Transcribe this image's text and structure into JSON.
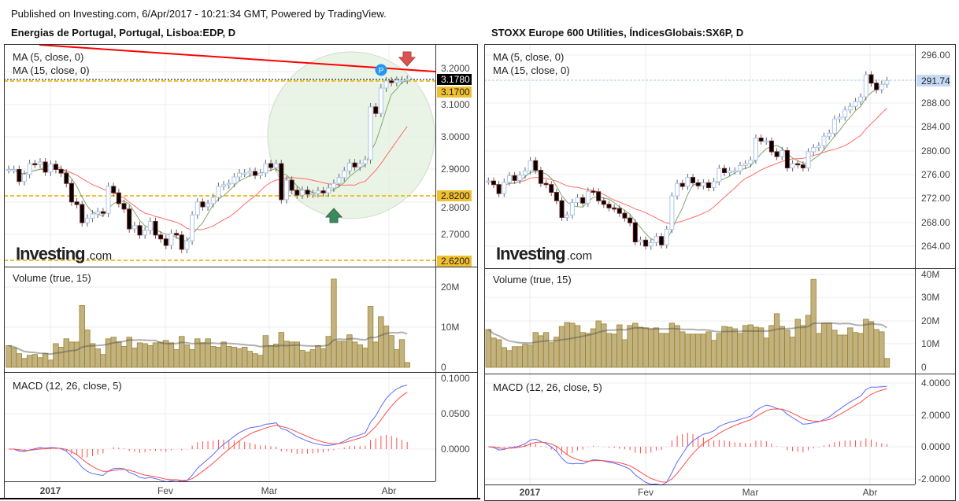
{
  "header": {
    "published": "Published on Investing.com, 6/Apr/2017 - 10:21:34 GMT, Powered by TradingView."
  },
  "watermark": {
    "brand": "Investing",
    "suffix": ".com"
  },
  "left": {
    "title": "Energias de Portugal, Portugal, Lisboa:EDP, D",
    "ma5_label": "MA (5, close, 0)",
    "ma15_label": "MA (15, close, 0)",
    "volume_label": "Volume (true, 15)",
    "macd_label": "MACD (12, 26, close, 5)",
    "price_ticks": [
      "3.2000",
      "3.1000",
      "3.0000",
      "2.9000",
      "2.8000",
      "2.7000"
    ],
    "price_badges": {
      "last": "3.1780",
      "level1": "3.1700",
      "level2": "2.8200",
      "level3": "2.6200"
    },
    "volume_ticks": [
      "20M",
      "10M",
      "0"
    ],
    "macd_ticks": [
      "0.1000",
      "0.0500",
      "0.0000"
    ],
    "date_labels": [
      "2017",
      "Fev",
      "Mar",
      "Abr"
    ],
    "colors": {
      "level_line": "#f0c030",
      "trend_line": "#ff0000",
      "highlight_circle": "#e6f2e2",
      "pin": "#2196f3",
      "arrow_down": "#d9534f",
      "arrow_up": "#3c8a5c"
    },
    "pin_label": "P"
  },
  "right": {
    "title": "STOXX Europe 600 Utilities, ÍndicesGlobais:SX6P, D",
    "ma5_label": "MA (5, close, 0)",
    "ma15_label": "MA (15, close, 0)",
    "volume_label": "Volume (true, 15)",
    "macd_label": "MACD (12, 26, close, 5)",
    "price_ticks": [
      "296.00",
      "288.00",
      "284.00",
      "280.00",
      "276.00",
      "272.00",
      "268.00",
      "264.00"
    ],
    "price_badges": {
      "last": "291.74"
    },
    "volume_ticks": [
      "40M",
      "30M",
      "20M",
      "10M",
      "0"
    ],
    "macd_ticks": [
      "4.0000",
      "2.0000",
      "0.0000",
      "-2.0000"
    ],
    "date_labels": [
      "2017",
      "Fev",
      "Mar",
      "Abr"
    ]
  },
  "chart_data": [
    {
      "type": "candlestick",
      "title": "Energias de Portugal, Portugal, Lisboa:EDP, D",
      "close": [
        2.9,
        2.9,
        2.863,
        2.885,
        2.918,
        2.916,
        2.923,
        2.892,
        2.916,
        2.9,
        2.889,
        2.857,
        2.8,
        2.792,
        2.736,
        2.75,
        2.763,
        2.77,
        2.765,
        2.848,
        2.828,
        2.795,
        2.778,
        2.717,
        2.727,
        2.698,
        2.712,
        2.74,
        2.698,
        2.686,
        2.666,
        2.703,
        2.698,
        2.654,
        2.68,
        2.76,
        2.8,
        2.785,
        2.795,
        2.814,
        2.848,
        2.853,
        2.857,
        2.877,
        2.889,
        2.889,
        2.894,
        2.882,
        2.889,
        2.918,
        2.906,
        2.918,
        2.807,
        2.867,
        2.836,
        2.821,
        2.836,
        2.824,
        2.826,
        2.834,
        2.828,
        2.843,
        2.857,
        2.875,
        2.896,
        2.92,
        2.908,
        2.918,
        2.93,
        3.093,
        3.073,
        3.151,
        3.173,
        3.168,
        3.175,
        3.175,
        3.178
      ],
      "volume_millions": [
        5.4,
        4.8,
        3.4,
        2.2,
        3.0,
        3.2,
        2.4,
        3.4,
        1.8,
        5.9,
        5.0,
        7.1,
        6.3,
        6.3,
        15.4,
        9.3,
        5.9,
        4.6,
        3.2,
        7.1,
        7.5,
        6.3,
        5.2,
        7.5,
        4.8,
        6.1,
        5.9,
        5.4,
        6.1,
        6.3,
        6.7,
        6.1,
        4.4,
        7.7,
        5.6,
        4.4,
        7.1,
        6.1,
        7.1,
        5.2,
        5.0,
        6.3,
        5.2,
        5.0,
        4.6,
        5.0,
        4.0,
        3.4,
        3.0,
        7.9,
        5.4,
        5.8,
        8.7,
        6.5,
        6.3,
        6.3,
        4.2,
        3.8,
        4.4,
        5.4,
        4.6,
        7.7,
        22.0,
        6.5,
        6.5,
        8.1,
        6.3,
        5.6,
        4.8,
        15.2,
        6.3,
        12.6,
        10.3,
        7.9,
        4.4,
        6.9,
        1.2
      ],
      "levels": [
        3.17,
        2.82,
        2.62
      ],
      "last": 3.178,
      "price_range": [
        2.62,
        3.22
      ],
      "macd_range": [
        -0.03,
        0.1
      ]
    },
    {
      "type": "candlestick",
      "title": "STOXX Europe 600 Utilities, ÍndicesGlobais:SX6P, D",
      "close": [
        274.9,
        274.3,
        272.8,
        274.7,
        275.8,
        275.0,
        275.9,
        276.6,
        278.3,
        276.7,
        274.5,
        274.3,
        273.0,
        271.6,
        268.8,
        269.2,
        271.3,
        272.1,
        271.2,
        273.2,
        273.1,
        271.6,
        271.0,
        270.4,
        270.3,
        269.5,
        268.7,
        267.9,
        264.7,
        265.0,
        264.0,
        264.6,
        265.6,
        264.2,
        266.8,
        272.4,
        274.5,
        274.0,
        275.5,
        274.6,
        274.1,
        274.6,
        273.8,
        274.8,
        277.0,
        276.3,
        276.6,
        276.6,
        277.5,
        277.8,
        278.4,
        282.1,
        281.6,
        281.6,
        279.8,
        279.0,
        280.0,
        277.1,
        277.8,
        277.6,
        277.1,
        279.8,
        280.5,
        280.8,
        282.4,
        282.9,
        285.3,
        285.6,
        286.8,
        287.4,
        288.2,
        289.0,
        292.7,
        291.3,
        290.2,
        291.1,
        291.74
      ],
      "volume_millions": [
        16.3,
        12.6,
        11.9,
        8.5,
        7.2,
        8.9,
        8.9,
        9.9,
        9.6,
        15.0,
        13.6,
        15.0,
        10.6,
        13.0,
        17.6,
        19.3,
        19.0,
        18.0,
        15.0,
        14.6,
        16.6,
        20.0,
        18.7,
        14.6,
        14.3,
        18.3,
        11.9,
        18.0,
        19.0,
        17.3,
        17.0,
        16.3,
        17.0,
        14.6,
        14.6,
        19.0,
        18.0,
        15.3,
        14.3,
        14.3,
        14.3,
        14.3,
        15.3,
        11.6,
        14.6,
        17.6,
        17.3,
        16.6,
        14.6,
        18.0,
        18.3,
        17.3,
        17.0,
        12.6,
        18.0,
        23.1,
        17.6,
        16.0,
        13.0,
        20.7,
        18.0,
        22.4,
        37.9,
        14.6,
        19.0,
        19.0,
        16.0,
        13.9,
        13.9,
        17.0,
        15.0,
        14.6,
        20.7,
        19.7,
        16.3,
        15.3,
        3.8
      ],
      "last": 291.74,
      "price_range": [
        262,
        297
      ],
      "macd_range": [
        -2.2,
        4.2
      ]
    }
  ]
}
